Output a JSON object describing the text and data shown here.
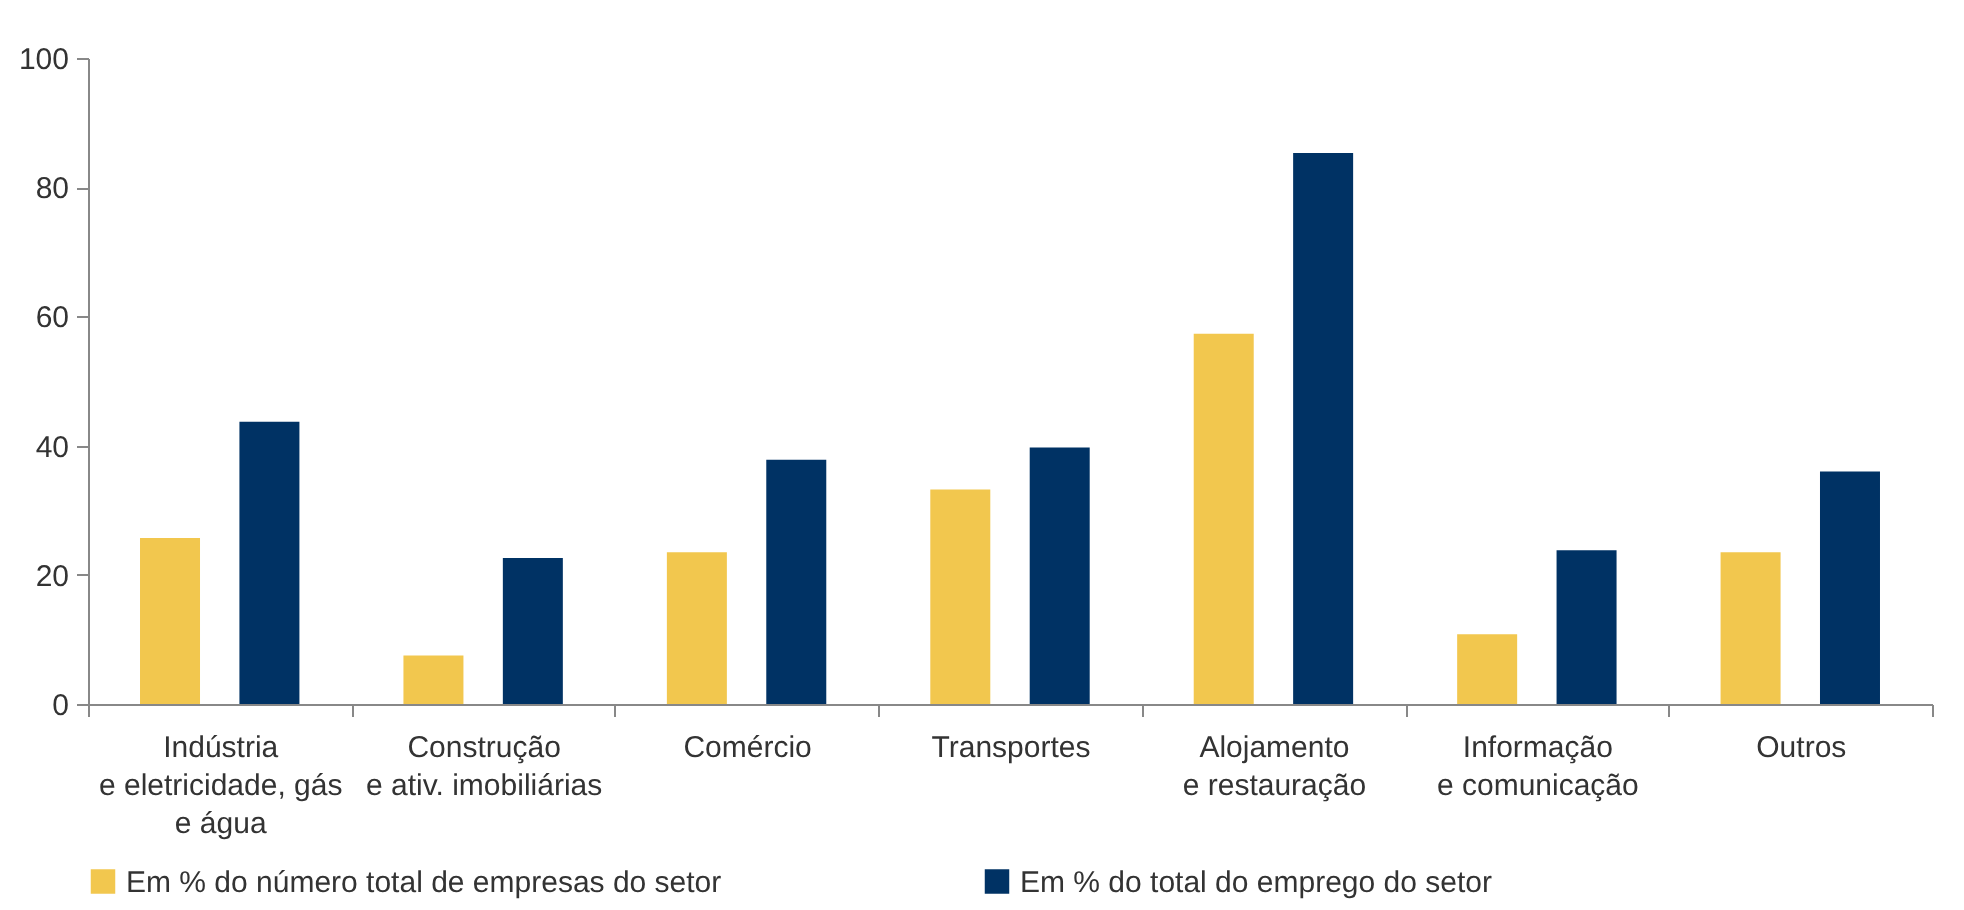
{
  "chart_data": {
    "type": "bar",
    "categories": [
      "Indústria\ne eletricidade, gás\ne água",
      "Construção\ne ativ. imobiliárias",
      "Comércio",
      "Transportes",
      "Alojamento\ne restauração",
      "Informação\ne comunicação",
      "Outros"
    ],
    "series": [
      {
        "name": "Em % do número total de empresas do setor",
        "color": "#f2c74e",
        "values": [
          25.7,
          7.5,
          23.5,
          33.2,
          57.3,
          10.8,
          23.5
        ]
      },
      {
        "name": "Em % do total do emprego do setor",
        "color": "#003264",
        "values": [
          43.7,
          22.6,
          37.8,
          39.7,
          85.3,
          23.8,
          36
        ]
      }
    ],
    "ylim": [
      0,
      100
    ],
    "yticks": [
      0,
      20,
      40,
      60,
      80,
      100
    ],
    "grid": false,
    "legend": "bottom"
  }
}
